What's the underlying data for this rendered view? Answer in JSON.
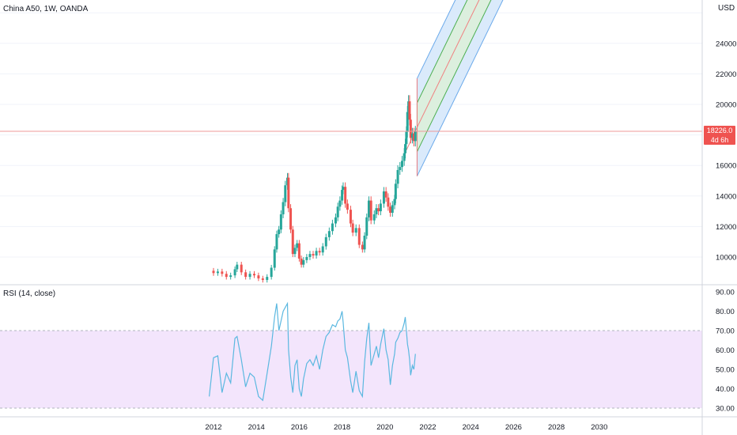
{
  "header": {
    "symbol_title": "China A50, 1W, OANDA",
    "currency": "USD"
  },
  "price_tag": {
    "price": "18226.0",
    "countdown": "4d 6h",
    "color": "#ef5350"
  },
  "rsi_title": "RSI (14, close)",
  "colors": {
    "up_candle": "#26a69a",
    "down_candle": "#ef5350",
    "rsi_line": "#5bb8e0",
    "rsi_band": "#f3e5fc",
    "channel_outer": "#d6e8fb",
    "channel_inner": "#dcefda",
    "channel_mid": "#f08080",
    "channel_border_outer": "#6aa9ea",
    "channel_border_inner": "#4caf50"
  },
  "chart_data": [
    {
      "type": "candlestick",
      "title": "China A50, 1W, OANDA",
      "ylabel": "USD",
      "x_tick_labels": [
        "2012",
        "2014",
        "2016",
        "2018",
        "2020",
        "2022",
        "2024",
        "2026",
        "2028",
        "2030"
      ],
      "y_tick_labels": [
        "10000.0",
        "12000.0",
        "14000.0",
        "16000.0",
        "20000.0",
        "22000.0",
        "24000.0"
      ],
      "ylim": [
        8800,
        25800
      ],
      "xlim": [
        2011.4,
        2033.8
      ],
      "last_price": 18226.0,
      "close_series": [
        [
          2011.8,
          9100
        ],
        [
          2012.0,
          8950
        ],
        [
          2012.2,
          9050
        ],
        [
          2012.4,
          8900
        ],
        [
          2012.6,
          8700
        ],
        [
          2012.8,
          8800
        ],
        [
          2013.0,
          9200
        ],
        [
          2013.1,
          9500
        ],
        [
          2013.3,
          9000
        ],
        [
          2013.5,
          8700
        ],
        [
          2013.7,
          8900
        ],
        [
          2013.9,
          8800
        ],
        [
          2014.1,
          8600
        ],
        [
          2014.3,
          8500
        ],
        [
          2014.5,
          8700
        ],
        [
          2014.7,
          9300
        ],
        [
          2014.85,
          10500
        ],
        [
          2014.95,
          11500
        ],
        [
          2015.05,
          11800
        ],
        [
          2015.15,
          12800
        ],
        [
          2015.25,
          13600
        ],
        [
          2015.35,
          14700
        ],
        [
          2015.45,
          15200
        ],
        [
          2015.5,
          13200
        ],
        [
          2015.6,
          11800
        ],
        [
          2015.7,
          10200
        ],
        [
          2015.8,
          10600
        ],
        [
          2015.9,
          10900
        ],
        [
          2016.0,
          9900
        ],
        [
          2016.1,
          9500
        ],
        [
          2016.2,
          9800
        ],
        [
          2016.35,
          10000
        ],
        [
          2016.5,
          10200
        ],
        [
          2016.65,
          10100
        ],
        [
          2016.8,
          10400
        ],
        [
          2016.95,
          10300
        ],
        [
          2017.1,
          10700
        ],
        [
          2017.25,
          11300
        ],
        [
          2017.4,
          11700
        ],
        [
          2017.55,
          12200
        ],
        [
          2017.7,
          12600
        ],
        [
          2017.8,
          13300
        ],
        [
          2017.9,
          13700
        ],
        [
          2018.0,
          14400
        ],
        [
          2018.05,
          14600
        ],
        [
          2018.15,
          13500
        ],
        [
          2018.25,
          13100
        ],
        [
          2018.4,
          12200
        ],
        [
          2018.5,
          11600
        ],
        [
          2018.65,
          11900
        ],
        [
          2018.8,
          10800
        ],
        [
          2018.95,
          10500
        ],
        [
          2019.05,
          11400
        ],
        [
          2019.15,
          12600
        ],
        [
          2019.25,
          13700
        ],
        [
          2019.35,
          12400
        ],
        [
          2019.5,
          12800
        ],
        [
          2019.6,
          13200
        ],
        [
          2019.7,
          13000
        ],
        [
          2019.8,
          13500
        ],
        [
          2019.95,
          14300
        ],
        [
          2020.05,
          13900
        ],
        [
          2020.15,
          13300
        ],
        [
          2020.25,
          12900
        ],
        [
          2020.35,
          13400
        ],
        [
          2020.45,
          13800
        ],
        [
          2020.5,
          14800
        ],
        [
          2020.6,
          15700
        ],
        [
          2020.7,
          15900
        ],
        [
          2020.8,
          16300
        ],
        [
          2020.9,
          16800
        ],
        [
          2020.95,
          17400
        ],
        [
          2021.0,
          18200
        ],
        [
          2021.05,
          19500
        ],
        [
          2021.1,
          20200
        ],
        [
          2021.15,
          19000
        ],
        [
          2021.2,
          17800
        ],
        [
          2021.28,
          18100
        ],
        [
          2021.35,
          17600
        ],
        [
          2021.42,
          18226
        ]
      ],
      "annotations": [
        "Regression-style channel projected from 2021 to beyond 2030 with outer blue band, inner green band and red median line"
      ]
    },
    {
      "type": "line",
      "title": "RSI (14, close)",
      "y_tick_labels": [
        "30.00",
        "40.00",
        "50.00",
        "60.00",
        "70.00",
        "80.00",
        "90.00"
      ],
      "ylim": [
        28,
        92
      ],
      "band": [
        30,
        70
      ],
      "x": [
        2011.8,
        2012.0,
        2012.2,
        2012.4,
        2012.6,
        2012.8,
        2013.0,
        2013.1,
        2013.3,
        2013.5,
        2013.7,
        2013.9,
        2014.1,
        2014.3,
        2014.5,
        2014.7,
        2014.85,
        2014.95,
        2015.05,
        2015.15,
        2015.25,
        2015.35,
        2015.45,
        2015.5,
        2015.6,
        2015.7,
        2015.8,
        2015.9,
        2016.0,
        2016.1,
        2016.2,
        2016.35,
        2016.5,
        2016.65,
        2016.8,
        2016.95,
        2017.1,
        2017.25,
        2017.4,
        2017.55,
        2017.7,
        2017.8,
        2017.9,
        2018.0,
        2018.05,
        2018.15,
        2018.25,
        2018.4,
        2018.5,
        2018.65,
        2018.8,
        2018.95,
        2019.05,
        2019.15,
        2019.25,
        2019.35,
        2019.5,
        2019.6,
        2019.7,
        2019.8,
        2019.95,
        2020.05,
        2020.15,
        2020.25,
        2020.35,
        2020.45,
        2020.5,
        2020.6,
        2020.7,
        2020.8,
        2020.9,
        2020.95,
        2021.0,
        2021.05,
        2021.1,
        2021.15,
        2021.2,
        2021.28,
        2021.35,
        2021.42
      ],
      "values": [
        36,
        56,
        57,
        38,
        48,
        43,
        66,
        67,
        55,
        41,
        48,
        46,
        36,
        34,
        48,
        62,
        77,
        84,
        70,
        75,
        80,
        82,
        84,
        60,
        46,
        38,
        52,
        55,
        40,
        36,
        45,
        53,
        55,
        52,
        57,
        50,
        60,
        67,
        69,
        73,
        72,
        75,
        76,
        80,
        74,
        60,
        56,
        44,
        38,
        49,
        39,
        36,
        54,
        66,
        74,
        52,
        58,
        62,
        56,
        63,
        71,
        60,
        55,
        42,
        52,
        58,
        64,
        66,
        69,
        70,
        74,
        77,
        70,
        63,
        60,
        55,
        47,
        52,
        50,
        58
      ]
    }
  ]
}
